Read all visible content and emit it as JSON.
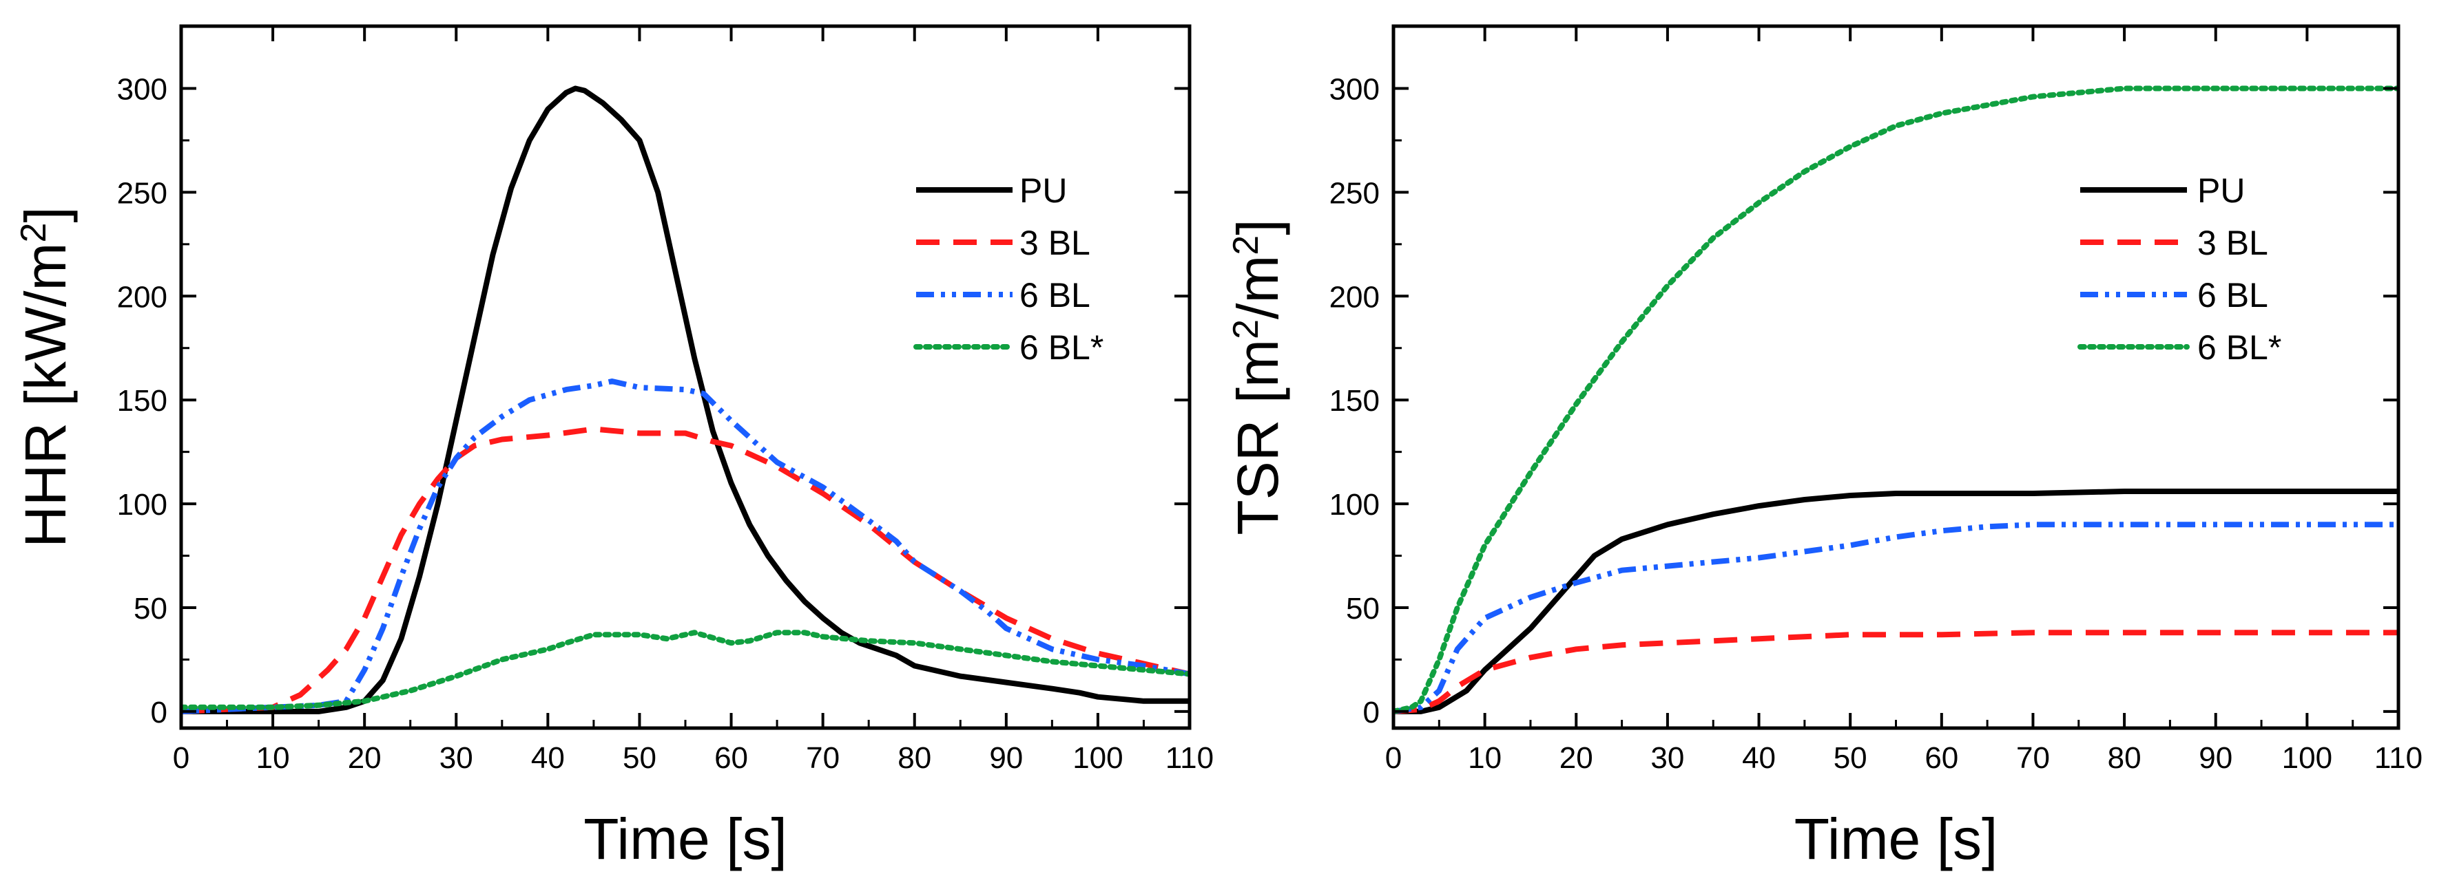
{
  "chart_data": [
    {
      "type": "line",
      "id": "hhr",
      "xlabel": "Time [s]",
      "ylabel_parts": [
        "HHR [kW/m",
        "2",
        "]"
      ],
      "xlim": [
        0,
        110
      ],
      "ylim": [
        -8,
        330
      ],
      "xticks": [
        0,
        10,
        20,
        30,
        40,
        50,
        60,
        70,
        80,
        90,
        100,
        110
      ],
      "yticks": [
        0,
        50,
        100,
        150,
        200,
        250,
        300
      ],
      "legend_position": "top-right",
      "series": [
        {
          "name": "PU",
          "color": "#000000",
          "style": "solid",
          "points": [
            [
              0,
              0
            ],
            [
              5,
              0
            ],
            [
              10,
              0
            ],
            [
              15,
              0
            ],
            [
              18,
              2
            ],
            [
              20,
              5
            ],
            [
              22,
              15
            ],
            [
              24,
              35
            ],
            [
              26,
              65
            ],
            [
              28,
              100
            ],
            [
              30,
              140
            ],
            [
              32,
              180
            ],
            [
              34,
              220
            ],
            [
              36,
              252
            ],
            [
              38,
              275
            ],
            [
              40,
              290
            ],
            [
              42,
              298
            ],
            [
              43,
              300
            ],
            [
              44,
              299
            ],
            [
              46,
              293
            ],
            [
              48,
              285
            ],
            [
              50,
              275
            ],
            [
              52,
              250
            ],
            [
              54,
              210
            ],
            [
              56,
              170
            ],
            [
              58,
              135
            ],
            [
              60,
              110
            ],
            [
              62,
              90
            ],
            [
              64,
              75
            ],
            [
              66,
              63
            ],
            [
              68,
              53
            ],
            [
              70,
              45
            ],
            [
              72,
              38
            ],
            [
              74,
              33
            ],
            [
              76,
              30
            ],
            [
              78,
              27
            ],
            [
              80,
              22
            ],
            [
              82,
              20
            ],
            [
              85,
              17
            ],
            [
              90,
              14
            ],
            [
              95,
              11
            ],
            [
              98,
              9
            ],
            [
              100,
              7
            ],
            [
              105,
              5
            ],
            [
              110,
              5
            ]
          ]
        },
        {
          "name": "3 BL",
          "color": "#ff1a1a",
          "style": "dashed",
          "points": [
            [
              0,
              0
            ],
            [
              5,
              1
            ],
            [
              10,
              2
            ],
            [
              13,
              8
            ],
            [
              16,
              20
            ],
            [
              18,
              30
            ],
            [
              20,
              45
            ],
            [
              22,
              65
            ],
            [
              24,
              85
            ],
            [
              26,
              100
            ],
            [
              28,
              112
            ],
            [
              30,
              122
            ],
            [
              32,
              128
            ],
            [
              35,
              131
            ],
            [
              40,
              133
            ],
            [
              45,
              136
            ],
            [
              50,
              134
            ],
            [
              55,
              134
            ],
            [
              58,
              130
            ],
            [
              60,
              128
            ],
            [
              62,
              124
            ],
            [
              65,
              118
            ],
            [
              70,
              105
            ],
            [
              75,
              90
            ],
            [
              80,
              72
            ],
            [
              85,
              58
            ],
            [
              90,
              45
            ],
            [
              95,
              35
            ],
            [
              100,
              28
            ],
            [
              105,
              23
            ],
            [
              110,
              18
            ]
          ]
        },
        {
          "name": "6 BL",
          "color": "#1a5eff",
          "style": "dashdotdot",
          "points": [
            [
              0,
              0
            ],
            [
              5,
              1
            ],
            [
              10,
              2
            ],
            [
              15,
              3
            ],
            [
              18,
              5
            ],
            [
              20,
              20
            ],
            [
              22,
              40
            ],
            [
              24,
              65
            ],
            [
              26,
              88
            ],
            [
              28,
              108
            ],
            [
              30,
              122
            ],
            [
              32,
              132
            ],
            [
              35,
              142
            ],
            [
              38,
              150
            ],
            [
              42,
              155
            ],
            [
              45,
              157
            ],
            [
              47,
              159
            ],
            [
              50,
              156
            ],
            [
              55,
              155
            ],
            [
              57,
              153
            ],
            [
              60,
              140
            ],
            [
              62,
              132
            ],
            [
              65,
              120
            ],
            [
              70,
              108
            ],
            [
              75,
              92
            ],
            [
              78,
              82
            ],
            [
              80,
              72
            ],
            [
              85,
              58
            ],
            [
              88,
              48
            ],
            [
              90,
              40
            ],
            [
              95,
              30
            ],
            [
              100,
              25
            ],
            [
              105,
              22
            ],
            [
              110,
              18
            ]
          ]
        },
        {
          "name": "6 BL*",
          "color": "#10a040",
          "style": "dotted",
          "points": [
            [
              0,
              2
            ],
            [
              5,
              2
            ],
            [
              10,
              2
            ],
            [
              15,
              3
            ],
            [
              20,
              5
            ],
            [
              25,
              10
            ],
            [
              30,
              17
            ],
            [
              35,
              25
            ],
            [
              38,
              28
            ],
            [
              40,
              30
            ],
            [
              42,
              33
            ],
            [
              45,
              37
            ],
            [
              50,
              37
            ],
            [
              53,
              35
            ],
            [
              56,
              38
            ],
            [
              60,
              33
            ],
            [
              62,
              34
            ],
            [
              65,
              38
            ],
            [
              68,
              38
            ],
            [
              70,
              36
            ],
            [
              75,
              34
            ],
            [
              80,
              33
            ],
            [
              85,
              30
            ],
            [
              90,
              27
            ],
            [
              95,
              24
            ],
            [
              100,
              22
            ],
            [
              105,
              20
            ],
            [
              110,
              18
            ]
          ]
        }
      ]
    },
    {
      "type": "line",
      "id": "tsr",
      "xlabel": "Time [s]",
      "ylabel_parts": [
        "TSR [m",
        "2",
        "/m",
        "2",
        "]"
      ],
      "xlim": [
        0,
        110
      ],
      "ylim": [
        -8,
        330
      ],
      "xticks": [
        0,
        10,
        20,
        30,
        40,
        50,
        60,
        70,
        80,
        90,
        100,
        110
      ],
      "yticks": [
        0,
        50,
        100,
        150,
        200,
        250,
        300
      ],
      "legend_position": "top-right",
      "series": [
        {
          "name": "PU",
          "color": "#000000",
          "style": "solid",
          "points": [
            [
              0,
              0
            ],
            [
              3,
              0
            ],
            [
              5,
              2
            ],
            [
              8,
              10
            ],
            [
              10,
              20
            ],
            [
              12,
              28
            ],
            [
              15,
              40
            ],
            [
              18,
              55
            ],
            [
              20,
              65
            ],
            [
              22,
              75
            ],
            [
              25,
              83
            ],
            [
              30,
              90
            ],
            [
              35,
              95
            ],
            [
              40,
              99
            ],
            [
              45,
              102
            ],
            [
              50,
              104
            ],
            [
              55,
              105
            ],
            [
              60,
              105
            ],
            [
              70,
              105
            ],
            [
              80,
              106
            ],
            [
              90,
              106
            ],
            [
              100,
              106
            ],
            [
              110,
              106
            ]
          ]
        },
        {
          "name": "3 BL",
          "color": "#ff1a1a",
          "style": "dashed",
          "points": [
            [
              0,
              0
            ],
            [
              3,
              1
            ],
            [
              5,
              5
            ],
            [
              7,
              12
            ],
            [
              10,
              20
            ],
            [
              15,
              26
            ],
            [
              20,
              30
            ],
            [
              25,
              32
            ],
            [
              30,
              33
            ],
            [
              40,
              35
            ],
            [
              50,
              37
            ],
            [
              60,
              37
            ],
            [
              70,
              38
            ],
            [
              80,
              38
            ],
            [
              90,
              38
            ],
            [
              100,
              38
            ],
            [
              110,
              38
            ]
          ]
        },
        {
          "name": "6 BL",
          "color": "#1a5eff",
          "style": "dashdotdot",
          "points": [
            [
              0,
              0
            ],
            [
              3,
              2
            ],
            [
              5,
              10
            ],
            [
              7,
              30
            ],
            [
              10,
              45
            ],
            [
              15,
              55
            ],
            [
              20,
              62
            ],
            [
              25,
              68
            ],
            [
              30,
              70
            ],
            [
              40,
              74
            ],
            [
              50,
              80
            ],
            [
              55,
              84
            ],
            [
              60,
              87
            ],
            [
              65,
              89
            ],
            [
              70,
              90
            ],
            [
              80,
              90
            ],
            [
              90,
              90
            ],
            [
              100,
              90
            ],
            [
              110,
              90
            ]
          ]
        },
        {
          "name": "6 BL*",
          "color": "#10a040",
          "style": "dotted",
          "points": [
            [
              0,
              0
            ],
            [
              2,
              2
            ],
            [
              3,
              5
            ],
            [
              5,
              25
            ],
            [
              7,
              50
            ],
            [
              10,
              80
            ],
            [
              15,
              115
            ],
            [
              20,
              148
            ],
            [
              25,
              178
            ],
            [
              30,
              205
            ],
            [
              35,
              228
            ],
            [
              40,
              245
            ],
            [
              45,
              260
            ],
            [
              50,
              272
            ],
            [
              55,
              282
            ],
            [
              60,
              288
            ],
            [
              65,
              292
            ],
            [
              70,
              296
            ],
            [
              75,
              298
            ],
            [
              80,
              300
            ],
            [
              90,
              300
            ],
            [
              100,
              300
            ],
            [
              110,
              300
            ]
          ]
        }
      ]
    }
  ]
}
